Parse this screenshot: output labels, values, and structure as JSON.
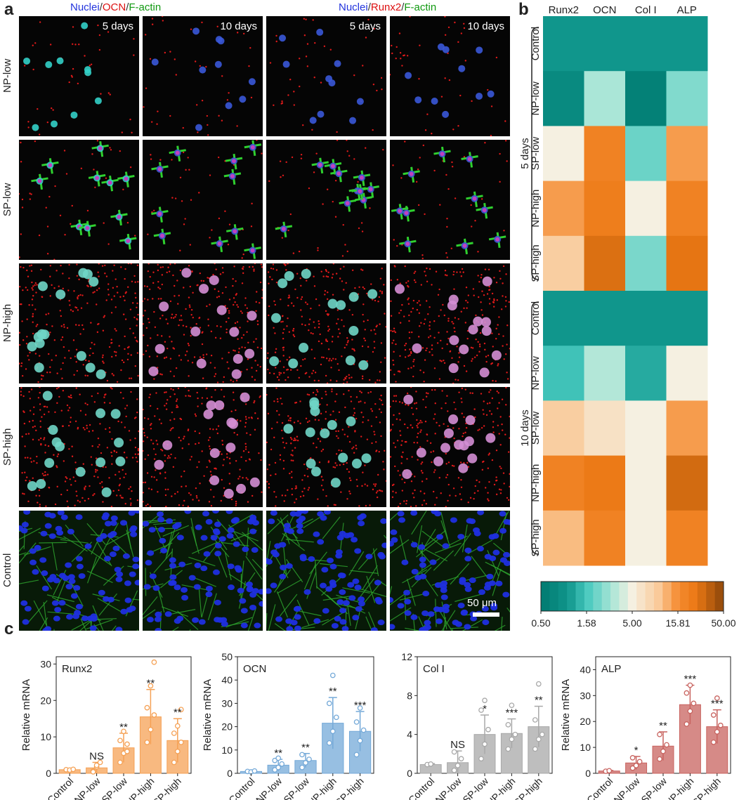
{
  "panels": {
    "a": "a",
    "b": "b",
    "c": "c"
  },
  "panel_a": {
    "header_left": {
      "nuclei": "Nuclei",
      "sep1": "/",
      "marker": "OCN",
      "sep2": "/",
      "actin": "F-actin"
    },
    "header_right": {
      "nuclei": "Nuclei",
      "sep1": "/",
      "marker": "Runx2",
      "sep2": "/",
      "actin": "F-actin"
    },
    "time_labels": [
      "5 days",
      "10 days",
      "5 days",
      "10 days"
    ],
    "row_labels": [
      "NP-low",
      "SP-low",
      "NP-high",
      "SP-high",
      "Control"
    ],
    "scale_bar": "50 μm"
  },
  "chart_data": [
    {
      "type": "heatmap",
      "columns": [
        "Runx2",
        "OCN",
        "Col I",
        "ALP"
      ],
      "groups": [
        {
          "name": "5 days",
          "rows": [
            "Control",
            "NP-low",
            "SP-low",
            "NP-high",
            "SP-high"
          ],
          "values": [
            [
              1.0,
              1.0,
              1.0,
              1.0
            ],
            [
              0.75,
              3.0,
              0.6,
              2.3
            ],
            [
              5.0,
              20.0,
              2.0,
              14.0
            ],
            [
              14.0,
              22.0,
              5.0,
              20.0
            ],
            [
              9.0,
              28.0,
              2.2,
              26.0
            ]
          ]
        },
        {
          "name": "10 days",
          "rows": [
            "Control",
            "NP-low",
            "SP-low",
            "NP-high",
            "SP-high"
          ],
          "values": [
            [
              1.0,
              1.0,
              1.0,
              1.0
            ],
            [
              1.5,
              3.2,
              1.2,
              5.0
            ],
            [
              9.0,
              6.5,
              5.0,
              14.0
            ],
            [
              20.0,
              24.0,
              5.0,
              30.0
            ],
            [
              11.0,
              20.0,
              5.0,
              20.0
            ]
          ]
        }
      ],
      "colorbar": {
        "scale": "log",
        "range": [
          0.5,
          50.0
        ],
        "ticks": [
          "0.50",
          "1.58",
          "5.00",
          "15.81",
          "50.00"
        ]
      }
    },
    {
      "type": "bar",
      "title": "Runx2",
      "ylabel": "Relative mRNA",
      "ylim": [
        0,
        32
      ],
      "yticks": [
        0,
        10,
        20,
        30
      ],
      "categories": [
        "Control",
        "NP-low",
        "SP-low",
        "NP-high",
        "SP-high"
      ],
      "values": [
        1.0,
        1.5,
        7.0,
        15.5,
        9.0
      ],
      "errors": [
        0.3,
        1.5,
        4.0,
        7.5,
        6.0
      ],
      "points": [
        [
          1.0,
          0.9,
          1.1
        ],
        [
          0.6,
          1.8,
          3.0,
          0.4,
          2.2
        ],
        [
          3.0,
          5.5,
          8.0,
          9.0,
          11.5,
          6.0
        ],
        [
          8.5,
          12.0,
          16.0,
          18.0,
          24.0,
          30.5
        ],
        [
          3.0,
          6.0,
          8.5,
          11.0,
          13.0,
          17.5
        ]
      ],
      "significance": [
        "",
        "NS",
        "**",
        "**",
        "**"
      ],
      "color": "#f5a155"
    },
    {
      "type": "bar",
      "title": "OCN",
      "ylabel": "Relative mRNA",
      "ylim": [
        0,
        50
      ],
      "yticks": [
        0,
        10,
        20,
        30,
        40,
        50
      ],
      "categories": [
        "Control",
        "NP-low",
        "SP-low",
        "NP-high",
        "SP-high"
      ],
      "values": [
        0.8,
        3.5,
        5.5,
        21.5,
        18.0
      ],
      "errors": [
        0.3,
        2.5,
        3.0,
        11.0,
        8.5
      ],
      "points": [
        [
          0.8,
          0.6,
          1.0
        ],
        [
          1.5,
          2.5,
          4.0,
          5.5,
          6.5
        ],
        [
          2.5,
          4.5,
          6.0,
          8.0
        ],
        [
          13.0,
          18.0,
          24.0,
          30.0,
          42.0
        ],
        [
          8.0,
          14.0,
          18.5,
          22.0,
          28.0
        ]
      ],
      "significance": [
        "",
        "**",
        "**",
        "**",
        "***"
      ],
      "color": "#74a9d8"
    },
    {
      "type": "bar",
      "title": "Col I",
      "ylabel": "",
      "ylim": [
        0,
        12
      ],
      "yticks": [
        0,
        4,
        8,
        12
      ],
      "categories": [
        "Control",
        "NP-low",
        "SP-low",
        "NP-high",
        "SP-high"
      ],
      "values": [
        0.9,
        1.1,
        4.0,
        4.1,
        4.8
      ],
      "errors": [
        0.1,
        1.2,
        2.0,
        1.5,
        2.1
      ],
      "points": [
        [
          0.9,
          0.95
        ],
        [
          0.3,
          0.8,
          1.5,
          2.2
        ],
        [
          1.5,
          3.0,
          4.5,
          6.5,
          7.5
        ],
        [
          2.5,
          3.5,
          4.0,
          5.0,
          7.0
        ],
        [
          2.5,
          3.5,
          4.0,
          5.5,
          9.2
        ]
      ],
      "significance": [
        "",
        "NS",
        "*",
        "***",
        "**"
      ],
      "color": "#a8a8a8"
    },
    {
      "type": "bar",
      "title": "ALP",
      "ylabel": "Relative mRNA",
      "ylim": [
        0,
        45
      ],
      "yticks": [
        0,
        10,
        20,
        30,
        40
      ],
      "categories": [
        "Control",
        "NP-low",
        "SP-low",
        "NP-high",
        "SP-high"
      ],
      "values": [
        0.9,
        4.0,
        10.5,
        26.5,
        18.0
      ],
      "errors": [
        0.2,
        2.5,
        5.5,
        7.5,
        6.5
      ],
      "points": [
        [
          0.8,
          1.0
        ],
        [
          2.0,
          3.0,
          4.5,
          6.0
        ],
        [
          5.5,
          8.5,
          11.0,
          15.0
        ],
        [
          19.0,
          24.0,
          27.0,
          31.0,
          34.0
        ],
        [
          12.0,
          16.0,
          18.5,
          22.5,
          29.0
        ]
      ],
      "significance": [
        "",
        "*",
        "**",
        "***",
        "***"
      ],
      "color": "#c8635f"
    }
  ]
}
